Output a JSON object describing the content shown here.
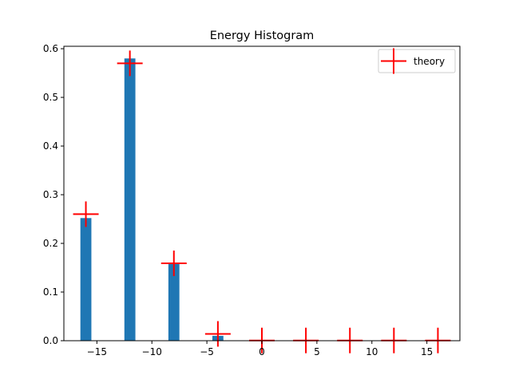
{
  "chart_data": {
    "type": "bar",
    "title": "Energy Histogram",
    "xlabel": "",
    "ylabel": "",
    "xlim": [
      -18,
      18
    ],
    "ylim": [
      0,
      0.605
    ],
    "xticks": [
      -15,
      -10,
      -5,
      0,
      5,
      10,
      15
    ],
    "xtick_labels": [
      "−15",
      "−10",
      "−5",
      "0",
      "5",
      "10",
      "15"
    ],
    "yticks": [
      0.0,
      0.1,
      0.2,
      0.3,
      0.4,
      0.5,
      0.6
    ],
    "ytick_labels": [
      "0.0",
      "0.1",
      "0.2",
      "0.3",
      "0.4",
      "0.5",
      "0.6"
    ],
    "grid": false,
    "bar_color": "#1f77b4",
    "bar_width": 1.0,
    "histogram": {
      "x": [
        -16,
        -12,
        -8,
        -4,
        0,
        4,
        8,
        12,
        16
      ],
      "values": [
        0.252,
        0.58,
        0.158,
        0.01,
        0.0,
        0.0,
        0.0,
        0.0,
        0.0
      ]
    },
    "series": [
      {
        "name": "theory",
        "type": "marker",
        "marker": "+",
        "color": "#ff0000",
        "x": [
          -16,
          -12,
          -8,
          -4,
          0,
          4,
          8,
          12,
          16
        ],
        "values": [
          0.26,
          0.57,
          0.159,
          0.014,
          0.0005,
          0.0005,
          0.0005,
          0.0005,
          0.0005
        ]
      }
    ],
    "legend": {
      "position": "top-right",
      "entries": [
        "theory"
      ]
    }
  }
}
